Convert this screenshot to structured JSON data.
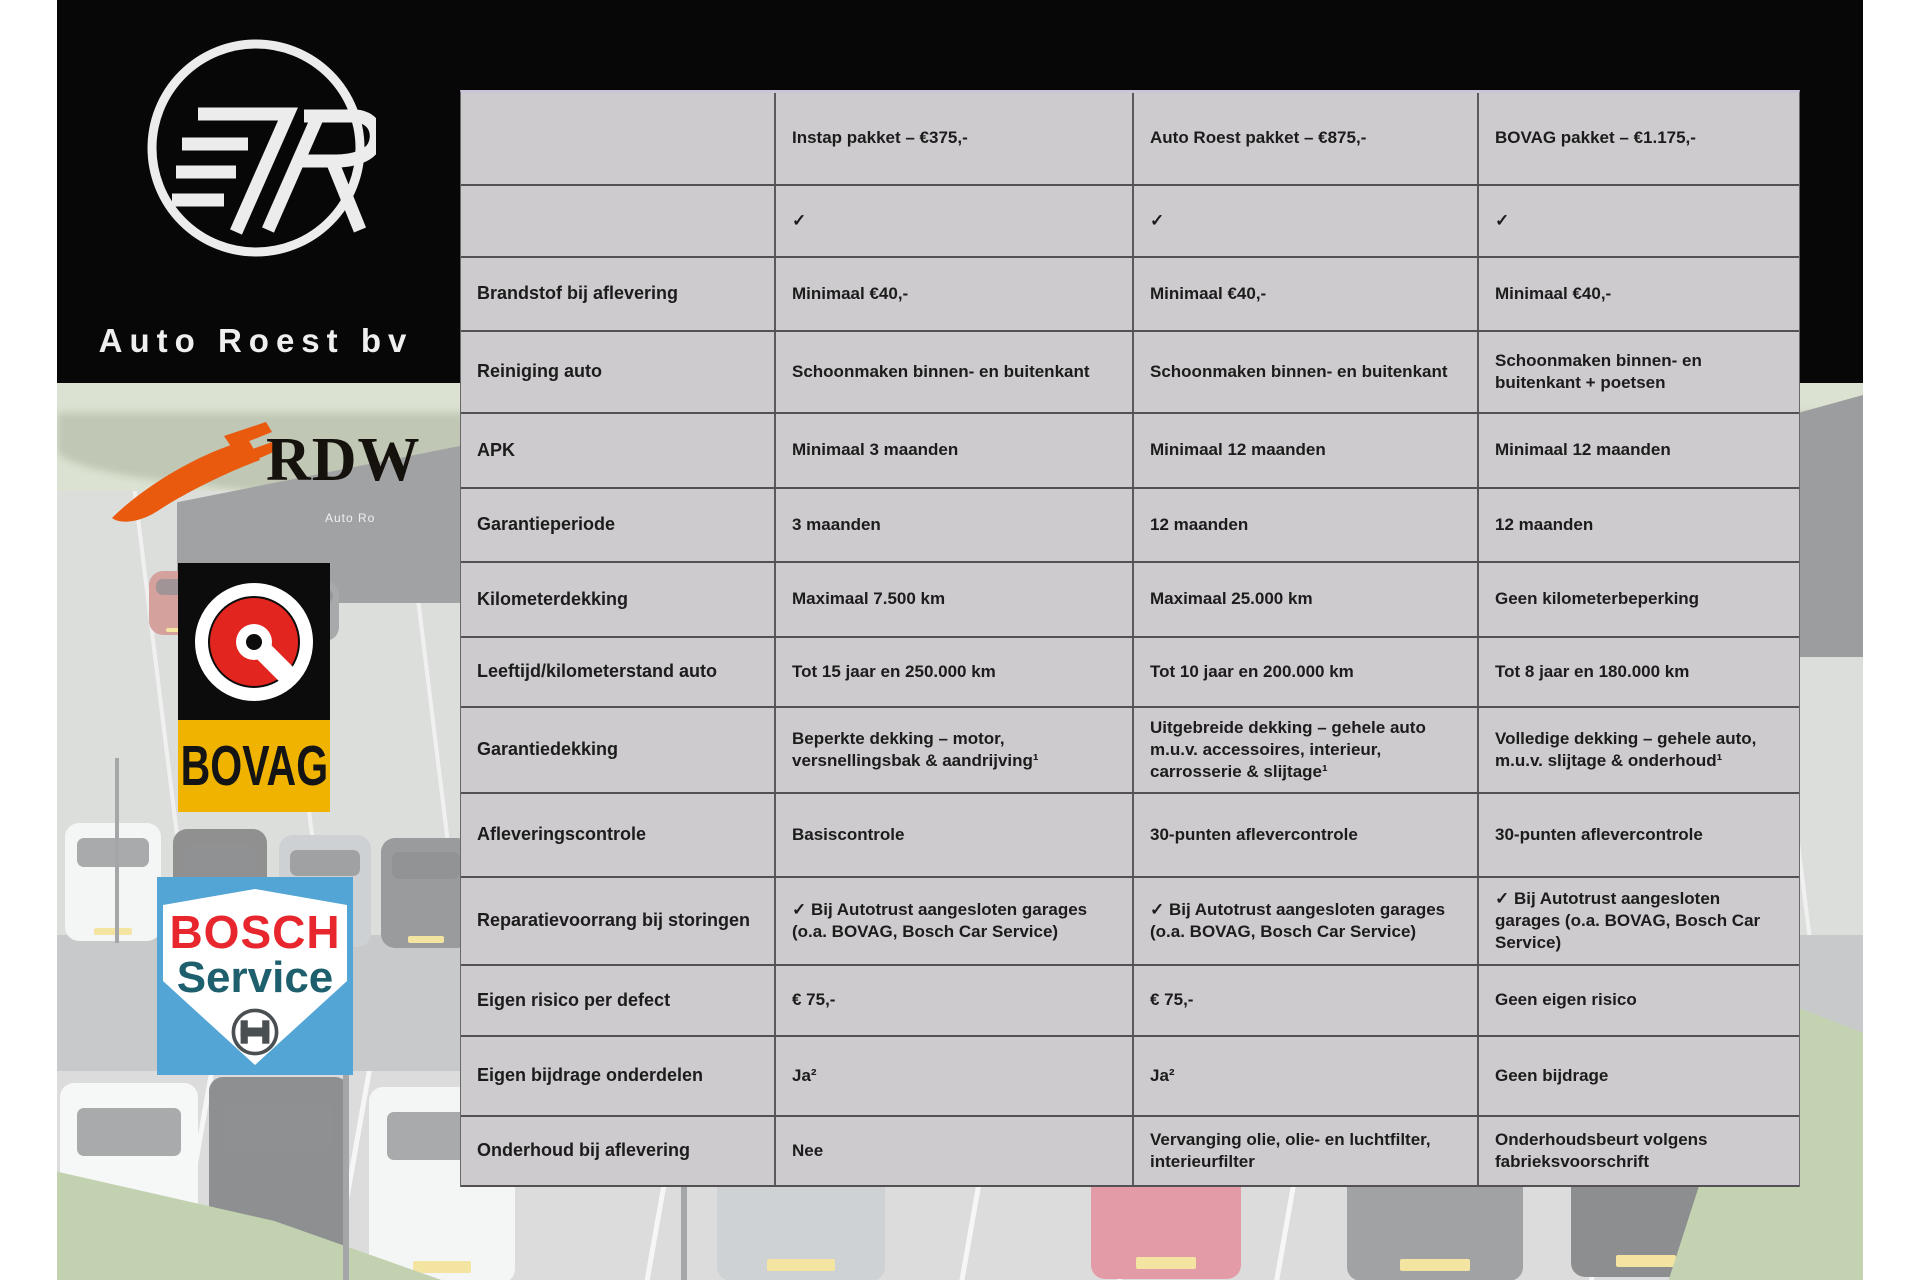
{
  "brand": {
    "name": "Auto Roest bv"
  },
  "photo": {
    "building_sign": "Auto Ro"
  },
  "partner_logos": {
    "rdw_text": "RDW",
    "bovag_text": "BOVAG",
    "bosch_text_line1": "BOSCH",
    "bosch_text_line2": "Service"
  },
  "colors": {
    "table_bg": "#cecbce",
    "table_border": "#545154",
    "table_top_accent": "#cbc4d9",
    "rdw_orange": "#e95a0e",
    "bovag_yellow": "#f0b400",
    "bovag_red": "#e2261f",
    "bosch_blue": "#53a5d6",
    "bosch_red": "#e7262d",
    "bosch_teal": "#1e5f6e"
  },
  "table": {
    "col_label": "",
    "packages": [
      "Instap pakket – €375,-",
      "Auto Roest pakket – €875,-",
      "BOVAG pakket – €1.175,-"
    ],
    "rows": [
      {
        "label": "",
        "values": [
          "✓",
          "✓",
          "✓"
        ]
      },
      {
        "label": "Brandstof bij aflevering",
        "values": [
          "Minimaal €40,-",
          "Minimaal €40,-",
          "Minimaal €40,-"
        ]
      },
      {
        "label": "Reiniging auto",
        "values": [
          "Schoonmaken binnen- en buitenkant",
          "Schoonmaken binnen- en buitenkant",
          "Schoonmaken binnen- en buitenkant + poetsen"
        ]
      },
      {
        "label": "APK",
        "values": [
          "Minimaal 3 maanden",
          "Minimaal 12 maanden",
          "Minimaal 12 maanden"
        ]
      },
      {
        "label": "Garantieperiode",
        "values": [
          "3 maanden",
          "12 maanden",
          "12 maanden"
        ]
      },
      {
        "label": "Kilometerdekking",
        "values": [
          "Maximaal 7.500 km",
          "Maximaal 25.000 km",
          "Geen kilometerbeperking"
        ]
      },
      {
        "label": "Leeftijd/kilometerstand auto",
        "values": [
          "Tot 15 jaar en 250.000 km",
          "Tot 10 jaar en 200.000 km",
          "Tot 8 jaar en 180.000 km"
        ]
      },
      {
        "label": "Garantiedekking",
        "values": [
          "Beperkte dekking – motor, versnellingsbak & aandrijving¹",
          "Uitgebreide dekking – gehele auto m.u.v. accessoires, interieur, carrosserie & slijtage¹",
          "Volledige dekking – gehele auto, m.u.v. slijtage & onderhoud¹"
        ]
      },
      {
        "label": "Afleveringscontrole",
        "values": [
          "Basiscontrole",
          "30-punten aflevercontrole",
          "30-punten aflevercontrole"
        ]
      },
      {
        "label": "Reparatievoorrang bij storingen",
        "values": [
          "✓ Bij Autotrust aangesloten garages (o.a. BOVAG, Bosch Car Service)",
          "✓ Bij Autotrust aangesloten garages (o.a. BOVAG, Bosch Car Service)",
          "✓ Bij Autotrust aangesloten garages (o.a. BOVAG, Bosch Car Service)"
        ]
      },
      {
        "label": "Eigen risico per defect",
        "values": [
          "€ 75,-",
          "€ 75,-",
          "Geen eigen risico"
        ]
      },
      {
        "label": "Eigen bijdrage onderdelen",
        "values": [
          "Ja²",
          "Ja²",
          "Geen bijdrage"
        ]
      },
      {
        "label": "Onderhoud bij aflevering",
        "values": [
          "Nee",
          "Vervanging olie, olie- en luchtfilter, interieurfilter",
          "Onderhoudsbeurt volgens fabrieksvoorschrift"
        ]
      }
    ]
  }
}
